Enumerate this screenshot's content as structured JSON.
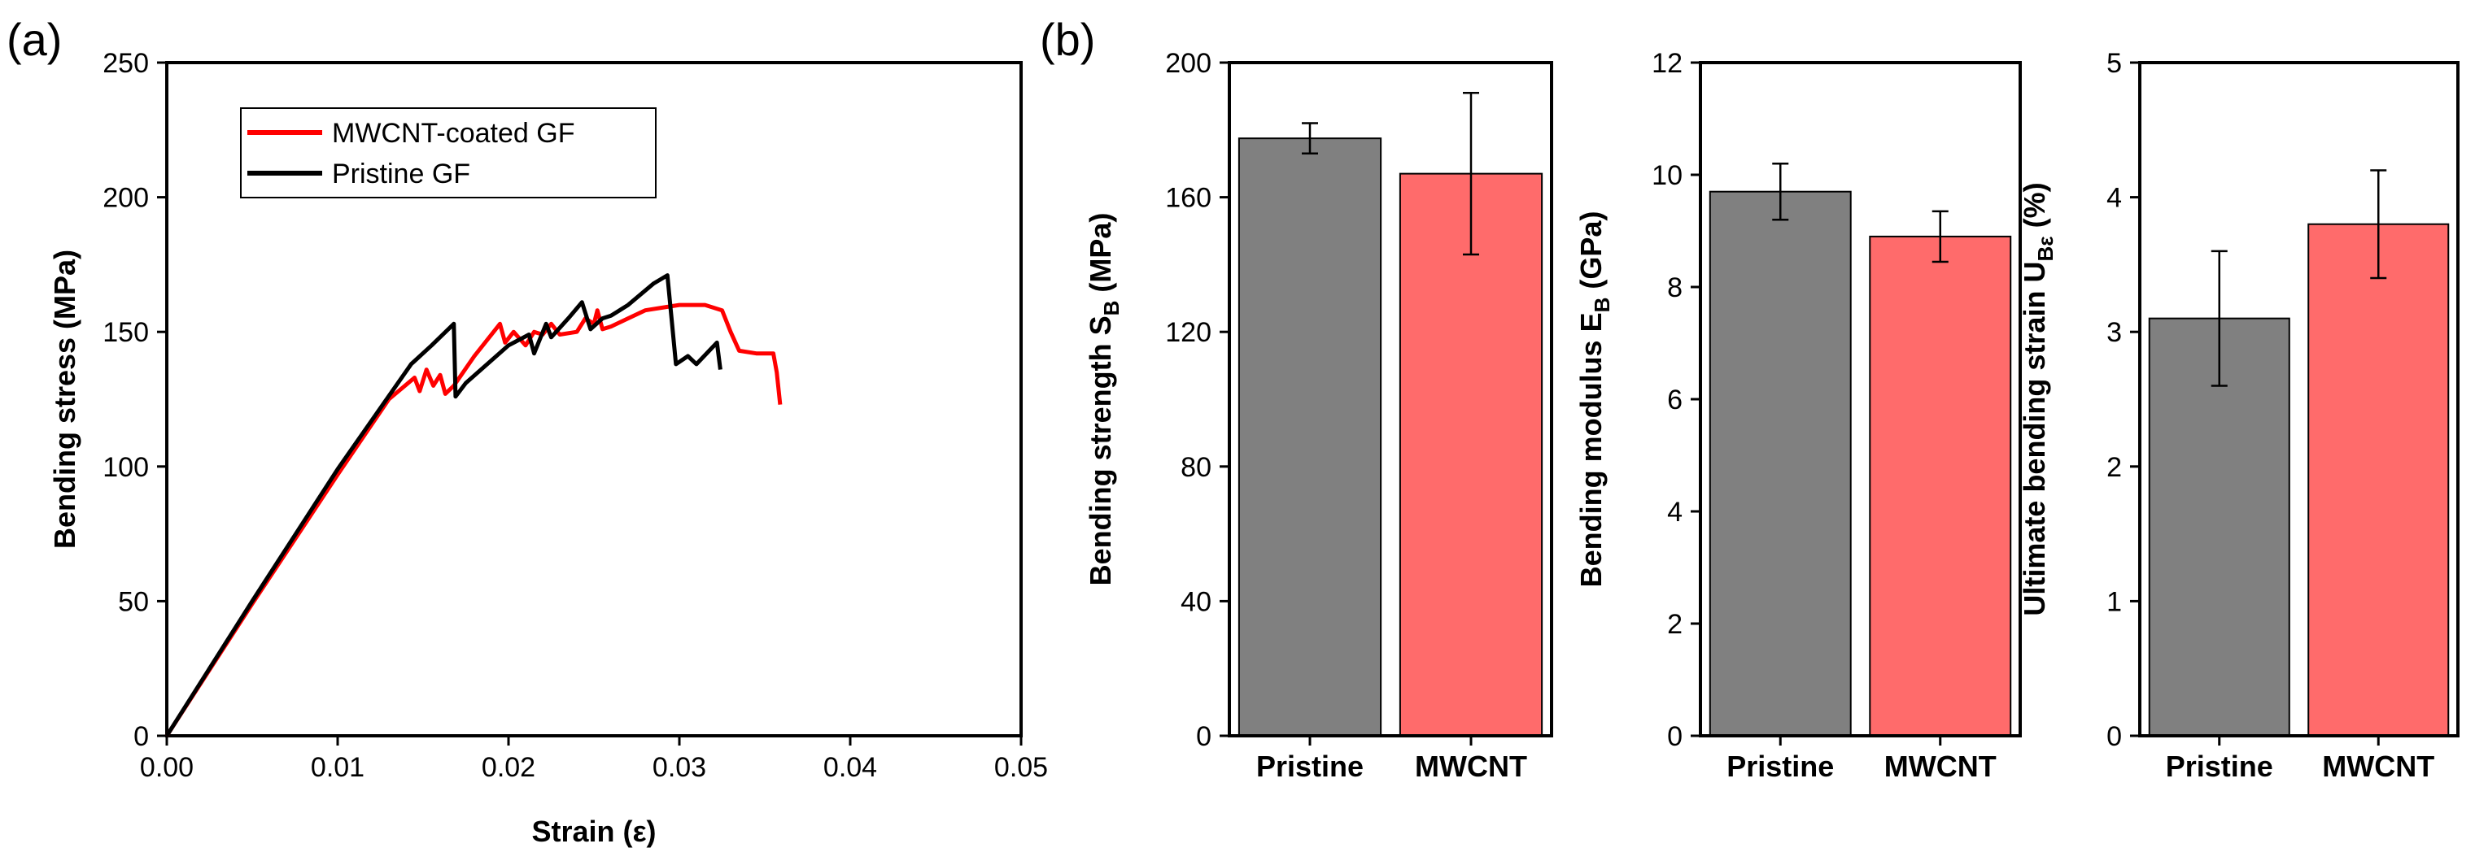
{
  "panel_labels": [
    "(a)",
    "(b)"
  ],
  "colors": {
    "pristine_line": "#000000",
    "mwcnt_line": "#ff0000",
    "pristine_bar": "#808080",
    "mwcnt_bar": "#ff6b6b",
    "error_bar": "#000000"
  },
  "chart_data": [
    {
      "type": "line",
      "panel": "(a)",
      "xlabel": "Strain (ε)",
      "ylabel": "Bending stress (MPa)",
      "xlim": [
        0.0,
        0.05
      ],
      "ylim": [
        0,
        250
      ],
      "xticks": [
        "0.00",
        "0.01",
        "0.02",
        "0.03",
        "0.04",
        "0.05"
      ],
      "yticks": [
        "0",
        "50",
        "100",
        "150",
        "200",
        "250"
      ],
      "legend_position": "top-left",
      "series": [
        {
          "name": "MWCNT-coated GF",
          "color": "#ff0000",
          "points": [
            [
              0.0,
              0
            ],
            [
              0.005,
              49
            ],
            [
              0.01,
              97
            ],
            [
              0.013,
              125
            ],
            [
              0.0145,
              133
            ],
            [
              0.0148,
              128
            ],
            [
              0.0152,
              136
            ],
            [
              0.0156,
              130
            ],
            [
              0.016,
              134
            ],
            [
              0.0163,
              127
            ],
            [
              0.0168,
              130
            ],
            [
              0.018,
              141
            ],
            [
              0.0195,
              153
            ],
            [
              0.0198,
              146
            ],
            [
              0.0203,
              150
            ],
            [
              0.021,
              145
            ],
            [
              0.0215,
              150
            ],
            [
              0.022,
              149
            ],
            [
              0.0225,
              153
            ],
            [
              0.023,
              149
            ],
            [
              0.024,
              150
            ],
            [
              0.0245,
              155
            ],
            [
              0.025,
              153
            ],
            [
              0.0252,
              158
            ],
            [
              0.0255,
              151
            ],
            [
              0.026,
              152
            ],
            [
              0.027,
              155
            ],
            [
              0.028,
              158
            ],
            [
              0.029,
              159
            ],
            [
              0.03,
              160
            ],
            [
              0.0315,
              160
            ],
            [
              0.0325,
              158
            ],
            [
              0.033,
              150
            ],
            [
              0.0335,
              143
            ],
            [
              0.0345,
              142
            ],
            [
              0.0355,
              142
            ],
            [
              0.0357,
              135
            ],
            [
              0.0359,
              123
            ]
          ]
        },
        {
          "name": "Pristine GF",
          "color": "#000000",
          "points": [
            [
              0.0,
              0
            ],
            [
              0.005,
              50
            ],
            [
              0.01,
              99
            ],
            [
              0.0143,
              138
            ],
            [
              0.0155,
              145
            ],
            [
              0.0168,
              153
            ],
            [
              0.0169,
              126
            ],
            [
              0.0175,
              131
            ],
            [
              0.02,
              145
            ],
            [
              0.0212,
              149
            ],
            [
              0.0215,
              142
            ],
            [
              0.0222,
              153
            ],
            [
              0.0225,
              148
            ],
            [
              0.0235,
              155
            ],
            [
              0.0243,
              161
            ],
            [
              0.0248,
              151
            ],
            [
              0.0255,
              155
            ],
            [
              0.026,
              156
            ],
            [
              0.027,
              160
            ],
            [
              0.0285,
              168
            ],
            [
              0.0293,
              171
            ],
            [
              0.0298,
              138
            ],
            [
              0.0305,
              141
            ],
            [
              0.031,
              138
            ],
            [
              0.0322,
              146
            ],
            [
              0.0324,
              136
            ]
          ]
        }
      ]
    },
    {
      "type": "bar",
      "panel": "(b)",
      "categories": [
        "Pristine",
        "MWCNT"
      ],
      "ylabel_main": "Bending strength S",
      "ylabel_sub": "B",
      "ylabel_unit": " (MPa)",
      "ylim": [
        0,
        200
      ],
      "yticks": [
        "0",
        "40",
        "80",
        "120",
        "160",
        "200"
      ],
      "values": [
        177.5,
        167
      ],
      "errors": [
        4.5,
        24
      ]
    },
    {
      "type": "bar",
      "panel": "(b)",
      "categories": [
        "Pristine",
        "MWCNT"
      ],
      "ylabel_main": "Bending modulus E",
      "ylabel_sub": "B",
      "ylabel_unit": " (GPa)",
      "ylim": [
        0,
        12
      ],
      "yticks": [
        "0",
        "2",
        "4",
        "6",
        "8",
        "10",
        "12"
      ],
      "values": [
        9.7,
        8.9
      ],
      "errors": [
        0.5,
        0.45
      ]
    },
    {
      "type": "bar",
      "panel": "(b)",
      "categories": [
        "Pristine",
        "MWCNT"
      ],
      "ylabel_main": "Ultimate bending strain U",
      "ylabel_sub": "Bε",
      "ylabel_unit": " (%)",
      "ylim": [
        0,
        5
      ],
      "yticks": [
        "0",
        "1",
        "2",
        "3",
        "4",
        "5"
      ],
      "values": [
        3.1,
        3.8
      ],
      "errors": [
        0.5,
        0.4
      ]
    }
  ]
}
